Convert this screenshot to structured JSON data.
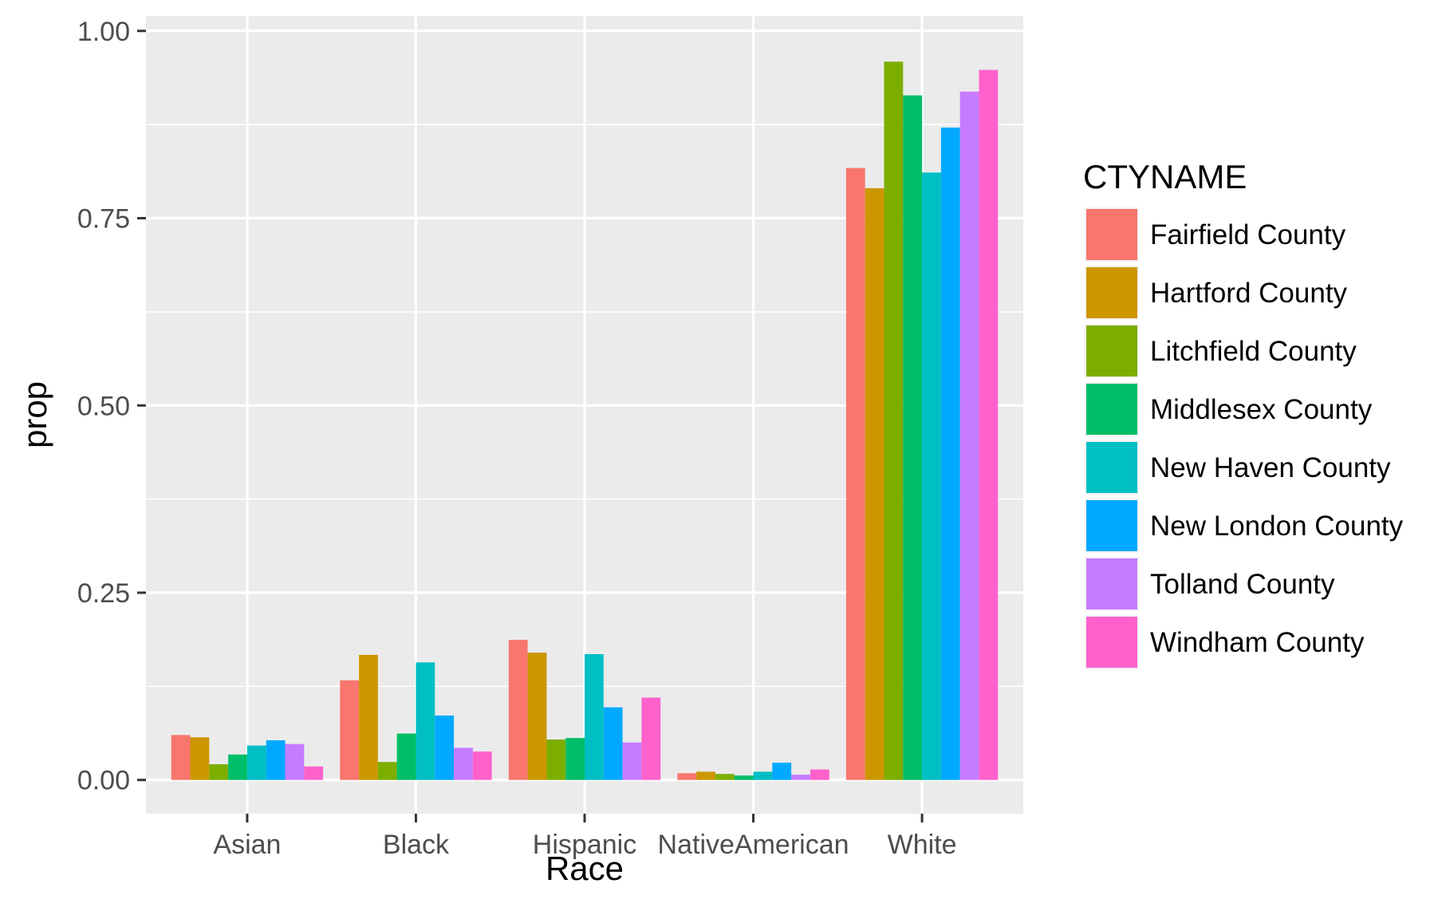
{
  "chart_data": {
    "type": "bar",
    "xlabel": "Race",
    "ylabel": "prop",
    "ylim": [
      -0.045,
      1.02
    ],
    "yticks": [
      0.0,
      0.25,
      0.5,
      0.75,
      1.0
    ],
    "ytick_labels": [
      "0.00",
      "0.25",
      "0.50",
      "0.75",
      "1.00"
    ],
    "categories": [
      "Asian",
      "Black",
      "Hispanic",
      "NativeAmerican",
      "White"
    ],
    "grid": true,
    "legend": {
      "title": "CTYNAME",
      "position": "right"
    },
    "series": [
      {
        "name": "Fairfield County",
        "color": "#F8766D",
        "values": [
          0.06,
          0.133,
          0.187,
          0.009,
          0.817
        ]
      },
      {
        "name": "Hartford County",
        "color": "#CD9600",
        "values": [
          0.057,
          0.167,
          0.17,
          0.011,
          0.79
        ]
      },
      {
        "name": "Litchfield County",
        "color": "#7CAE00",
        "values": [
          0.021,
          0.024,
          0.054,
          0.008,
          0.959
        ]
      },
      {
        "name": "Middlesex County",
        "color": "#00BE67",
        "values": [
          0.034,
          0.062,
          0.056,
          0.006,
          0.914
        ]
      },
      {
        "name": "New Haven County",
        "color": "#00BFC4",
        "values": [
          0.046,
          0.157,
          0.168,
          0.011,
          0.811
        ]
      },
      {
        "name": "New London County",
        "color": "#00A9FF",
        "values": [
          0.053,
          0.086,
          0.097,
          0.023,
          0.871
        ]
      },
      {
        "name": "Tolland County",
        "color": "#C77CFF",
        "values": [
          0.048,
          0.043,
          0.05,
          0.007,
          0.919
        ]
      },
      {
        "name": "Windham County",
        "color": "#FF61CC",
        "values": [
          0.018,
          0.038,
          0.11,
          0.014,
          0.948
        ]
      }
    ]
  },
  "colors": {
    "panel": "#EBEBEB",
    "grid": "#FFFFFF",
    "tick": "#333333",
    "text": "#000000"
  }
}
